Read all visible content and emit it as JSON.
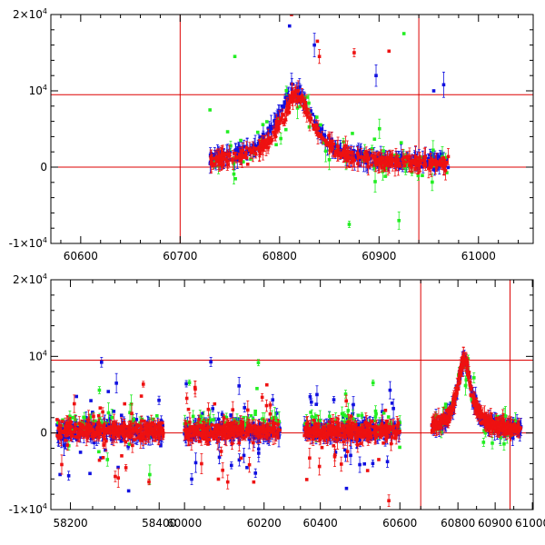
{
  "chart_data": [
    {
      "type": "scatter",
      "panel": "top",
      "title": "",
      "xlabel": "",
      "ylabel": "",
      "xlim": [
        60570,
        61055
      ],
      "ylim": [
        -10000,
        20000
      ],
      "x_ticks": [
        60600,
        60700,
        60800,
        60900,
        61000
      ],
      "x_tick_labels": [
        "60600",
        "60700",
        "60800",
        "60900",
        "61000"
      ],
      "y_tick_labels": [
        {
          "value": 20000,
          "base": "2×10",
          "exp": "4"
        },
        {
          "value": 10000,
          "base": "10",
          "exp": "4"
        },
        {
          "value": 0,
          "base": "0",
          "exp": ""
        },
        {
          "value": -10000,
          "base": "-1×10",
          "exp": "4"
        }
      ],
      "reference_lines": {
        "horizontal": [
          9500,
          0
        ],
        "vertical": [
          60700,
          60940
        ]
      },
      "data_range": [
        60730,
        60970
      ],
      "series": [
        {
          "name": "blue",
          "color": "#1010e0",
          "peak_x": 60815,
          "peak_y": 9500,
          "width": 22,
          "base": 500,
          "spikes": [
            [
              60810,
              18500
            ],
            [
              60835,
              16000
            ],
            [
              60897,
              12000
            ],
            [
              60955,
              10000
            ],
            [
              60965,
              10800
            ]
          ]
        },
        {
          "name": "red",
          "color": "#ee1111",
          "peak_x": 60817,
          "peak_y": 9000,
          "width": 20,
          "base": 400,
          "spikes": [
            [
              60812,
              20000
            ],
            [
              60838,
              16500
            ],
            [
              60875,
              15000
            ],
            [
              60910,
              15200
            ],
            [
              60840,
              14500
            ]
          ]
        },
        {
          "name": "green",
          "color": "#22ee22",
          "peak_x": 60815,
          "peak_y": 8500,
          "width": 25,
          "base": 800,
          "spikes": [
            [
              60755,
              14500
            ],
            [
              60925,
              17500
            ],
            [
              60870,
              -7500
            ],
            [
              60920,
              -7000
            ],
            [
              60730,
              7500
            ]
          ]
        }
      ]
    },
    {
      "type": "scatter",
      "panel": "bottom",
      "title": "",
      "xlabel": "",
      "ylabel": "",
      "ylim": [
        -10000,
        20000
      ],
      "segments": [
        {
          "xlim": [
            58160,
            58420
          ],
          "data_range": [
            58170,
            58410
          ],
          "ticks": [
            58200,
            58400
          ],
          "tick_labels": [
            "58200",
            "58400"
          ],
          "peak": false
        },
        {
          "xlim": [
            59970,
            60260
          ],
          "data_range": [
            60000,
            60240
          ],
          "ticks": [
            60000,
            60200
          ],
          "tick_labels": [
            "60000",
            "60200"
          ],
          "peak": false
        },
        {
          "xlim": [
            60330,
            60620
          ],
          "data_range": [
            60360,
            60600
          ],
          "ticks": [
            60400,
            60600
          ],
          "tick_labels": [
            "60400",
            "60600"
          ],
          "peak": false
        },
        {
          "xlim": [
            60680,
            60990
          ],
          "data_range": [
            60730,
            60970
          ],
          "ticks": [
            60800,
            60900,
            61000
          ],
          "tick_labels": [
            "60800",
            "60900",
            "61000"
          ],
          "peak": true,
          "vertical_lines": [
            60700,
            60940
          ]
        }
      ],
      "y_tick_labels": [
        {
          "value": 20000,
          "base": "2×10",
          "exp": "4"
        },
        {
          "value": 10000,
          "base": "10",
          "exp": "4"
        },
        {
          "value": 0,
          "base": "0",
          "exp": ""
        },
        {
          "value": -10000,
          "base": "-1×10",
          "exp": "4"
        }
      ],
      "reference_lines": {
        "horizontal": [
          9500,
          0
        ]
      },
      "series": [
        {
          "name": "blue",
          "color": "#1010e0"
        },
        {
          "name": "red",
          "color": "#ee1111"
        },
        {
          "name": "green",
          "color": "#22ee22"
        }
      ]
    }
  ]
}
